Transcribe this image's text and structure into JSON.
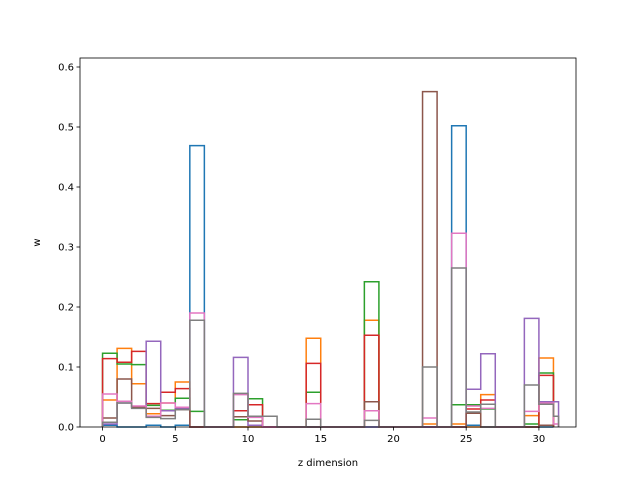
{
  "chart_data": {
    "type": "step",
    "title": "",
    "xlabel": "z dimension",
    "ylabel": "w",
    "xlim": [
      -1.55,
      32.55
    ],
    "ylim": [
      0,
      0.615
    ],
    "xticks": [
      0,
      5,
      10,
      15,
      20,
      25,
      30
    ],
    "yticks": [
      0.0,
      0.1,
      0.2,
      0.3,
      0.4,
      0.5,
      0.6
    ],
    "grid": false,
    "series": [
      {
        "color": "#1f77b4",
        "bins": [
          [
            0,
            1,
            0.003
          ],
          [
            1,
            2,
            0.0
          ],
          [
            2,
            3,
            0.0
          ],
          [
            3,
            4,
            0.003
          ],
          [
            4,
            5,
            0.0
          ],
          [
            5,
            6,
            0.003
          ],
          [
            6,
            7,
            0.469
          ],
          [
            7,
            24,
            0.0
          ],
          [
            24,
            25,
            0.502
          ],
          [
            25,
            26,
            0.003
          ],
          [
            26,
            31,
            0.0
          ]
        ]
      },
      {
        "color": "#ff7f0e",
        "bins": [
          [
            0,
            1,
            0.045
          ],
          [
            1,
            2,
            0.131
          ],
          [
            2,
            3,
            0.072
          ],
          [
            3,
            4,
            0.022
          ],
          [
            4,
            5,
            0.04
          ],
          [
            5,
            6,
            0.075
          ],
          [
            6,
            14,
            0.0
          ],
          [
            14,
            15,
            0.148
          ],
          [
            15,
            18,
            0.0
          ],
          [
            18,
            19,
            0.178
          ],
          [
            19,
            22,
            0.0
          ],
          [
            22,
            23,
            0.005
          ],
          [
            23,
            24,
            0.0
          ],
          [
            24,
            25,
            0.005
          ],
          [
            25,
            26,
            0.0
          ],
          [
            26,
            27,
            0.054
          ],
          [
            27,
            29,
            0.0
          ],
          [
            29,
            30,
            0.019
          ],
          [
            30,
            31,
            0.115
          ]
        ]
      },
      {
        "color": "#2ca02c",
        "bins": [
          [
            0,
            1,
            0.123
          ],
          [
            1,
            2,
            0.105
          ],
          [
            2,
            3,
            0.104
          ],
          [
            3,
            4,
            0.036
          ],
          [
            4,
            5,
            0.028
          ],
          [
            5,
            6,
            0.048
          ],
          [
            6,
            7,
            0.026
          ],
          [
            7,
            9,
            0.0
          ],
          [
            9,
            10,
            0.012
          ],
          [
            10,
            11,
            0.047
          ],
          [
            11,
            14,
            0.0
          ],
          [
            14,
            15,
            0.058
          ],
          [
            15,
            18,
            0.0
          ],
          [
            18,
            19,
            0.242
          ],
          [
            19,
            24,
            0.0
          ],
          [
            24,
            25,
            0.037
          ],
          [
            25,
            26,
            0.037
          ],
          [
            26,
            27,
            0.03
          ],
          [
            27,
            29,
            0.0
          ],
          [
            29,
            30,
            0.005
          ],
          [
            30,
            31,
            0.09
          ]
        ]
      },
      {
        "color": "#d62728",
        "bins": [
          [
            0,
            1,
            0.114
          ],
          [
            1,
            2,
            0.108
          ],
          [
            2,
            3,
            0.126
          ],
          [
            3,
            4,
            0.039
          ],
          [
            4,
            5,
            0.058
          ],
          [
            5,
            6,
            0.064
          ],
          [
            6,
            9,
            0.0
          ],
          [
            9,
            10,
            0.027
          ],
          [
            10,
            11,
            0.037
          ],
          [
            11,
            14,
            0.0
          ],
          [
            14,
            15,
            0.106
          ],
          [
            15,
            18,
            0.0
          ],
          [
            18,
            19,
            0.153
          ],
          [
            19,
            24,
            0.0
          ],
          [
            24,
            25,
            0.0
          ],
          [
            25,
            26,
            0.03
          ],
          [
            26,
            27,
            0.045
          ],
          [
            27,
            30,
            0.0
          ],
          [
            30,
            31,
            0.086
          ]
        ]
      },
      {
        "color": "#9467bd",
        "bins": [
          [
            0,
            1,
            0.005
          ],
          [
            1,
            2,
            0.04
          ],
          [
            2,
            3,
            0.034
          ],
          [
            3,
            4,
            0.143
          ],
          [
            4,
            5,
            0.027
          ],
          [
            5,
            6,
            0.031
          ],
          [
            6,
            9,
            0.0
          ],
          [
            9,
            10,
            0.116
          ],
          [
            10,
            11,
            0.003
          ],
          [
            11,
            24,
            0.0
          ],
          [
            24,
            25,
            0.0
          ],
          [
            25,
            26,
            0.063
          ],
          [
            26,
            27,
            0.122
          ],
          [
            27,
            29,
            0.0
          ],
          [
            29,
            30,
            0.181
          ],
          [
            30,
            31,
            0.042
          ],
          [
            31,
            31.35,
            0.042
          ]
        ]
      },
      {
        "color": "#8c564b",
        "bins": [
          [
            0,
            1,
            0.015
          ],
          [
            1,
            2,
            0.08
          ],
          [
            2,
            3,
            0.033
          ],
          [
            3,
            4,
            0.031
          ],
          [
            4,
            5,
            0.019
          ],
          [
            5,
            6,
            0.029
          ],
          [
            6,
            9,
            0.0
          ],
          [
            9,
            10,
            0.017
          ],
          [
            10,
            11,
            0.01
          ],
          [
            11,
            18,
            0.0
          ],
          [
            18,
            19,
            0.042
          ],
          [
            19,
            22,
            0.0
          ],
          [
            22,
            23,
            0.559
          ],
          [
            23,
            24,
            0.0
          ],
          [
            24,
            25,
            0.0
          ],
          [
            25,
            26,
            0.023
          ],
          [
            26,
            27,
            0.0
          ],
          [
            27,
            30,
            0.0
          ],
          [
            30,
            31,
            0.003
          ]
        ]
      },
      {
        "color": "#e377c2",
        "bins": [
          [
            0,
            1,
            0.055
          ],
          [
            1,
            2,
            0.043
          ],
          [
            2,
            3,
            0.035
          ],
          [
            3,
            4,
            0.018
          ],
          [
            4,
            5,
            0.04
          ],
          [
            5,
            6,
            0.033
          ],
          [
            6,
            7,
            0.19
          ],
          [
            7,
            9,
            0.0
          ],
          [
            9,
            10,
            0.054
          ],
          [
            10,
            11,
            0.016
          ],
          [
            11,
            14,
            0.0
          ],
          [
            14,
            15,
            0.039
          ],
          [
            15,
            18,
            0.0
          ],
          [
            18,
            19,
            0.027
          ],
          [
            19,
            22,
            0.0
          ],
          [
            22,
            23,
            0.015
          ],
          [
            23,
            24,
            0.0
          ],
          [
            24,
            25,
            0.323
          ],
          [
            25,
            26,
            0.035
          ],
          [
            26,
            27,
            0.031
          ],
          [
            27,
            29,
            0.0
          ],
          [
            29,
            30,
            0.026
          ],
          [
            30,
            31,
            0.04
          ],
          [
            31,
            31.35,
            0.005
          ]
        ]
      },
      {
        "color": "#7f7f7f",
        "bins": [
          [
            0,
            1,
            0.008
          ],
          [
            1,
            2,
            0.04
          ],
          [
            2,
            3,
            0.031
          ],
          [
            3,
            4,
            0.016
          ],
          [
            4,
            5,
            0.014
          ],
          [
            5,
            6,
            0.029
          ],
          [
            6,
            7,
            0.178
          ],
          [
            7,
            9,
            0.0
          ],
          [
            9,
            10,
            0.056
          ],
          [
            10,
            11,
            0.018
          ],
          [
            11,
            12,
            0.018
          ],
          [
            12,
            14,
            0.0
          ],
          [
            14,
            15,
            0.013
          ],
          [
            15,
            18,
            0.0
          ],
          [
            18,
            19,
            0.011
          ],
          [
            19,
            22,
            0.0
          ],
          [
            22,
            23,
            0.1
          ],
          [
            23,
            24,
            0.0
          ],
          [
            24,
            25,
            0.265
          ],
          [
            25,
            26,
            0.025
          ],
          [
            26,
            27,
            0.038
          ],
          [
            27,
            29,
            0.0
          ],
          [
            29,
            30,
            0.07
          ],
          [
            30,
            31,
            0.038
          ],
          [
            31,
            31.35,
            0.018
          ]
        ]
      }
    ]
  }
}
